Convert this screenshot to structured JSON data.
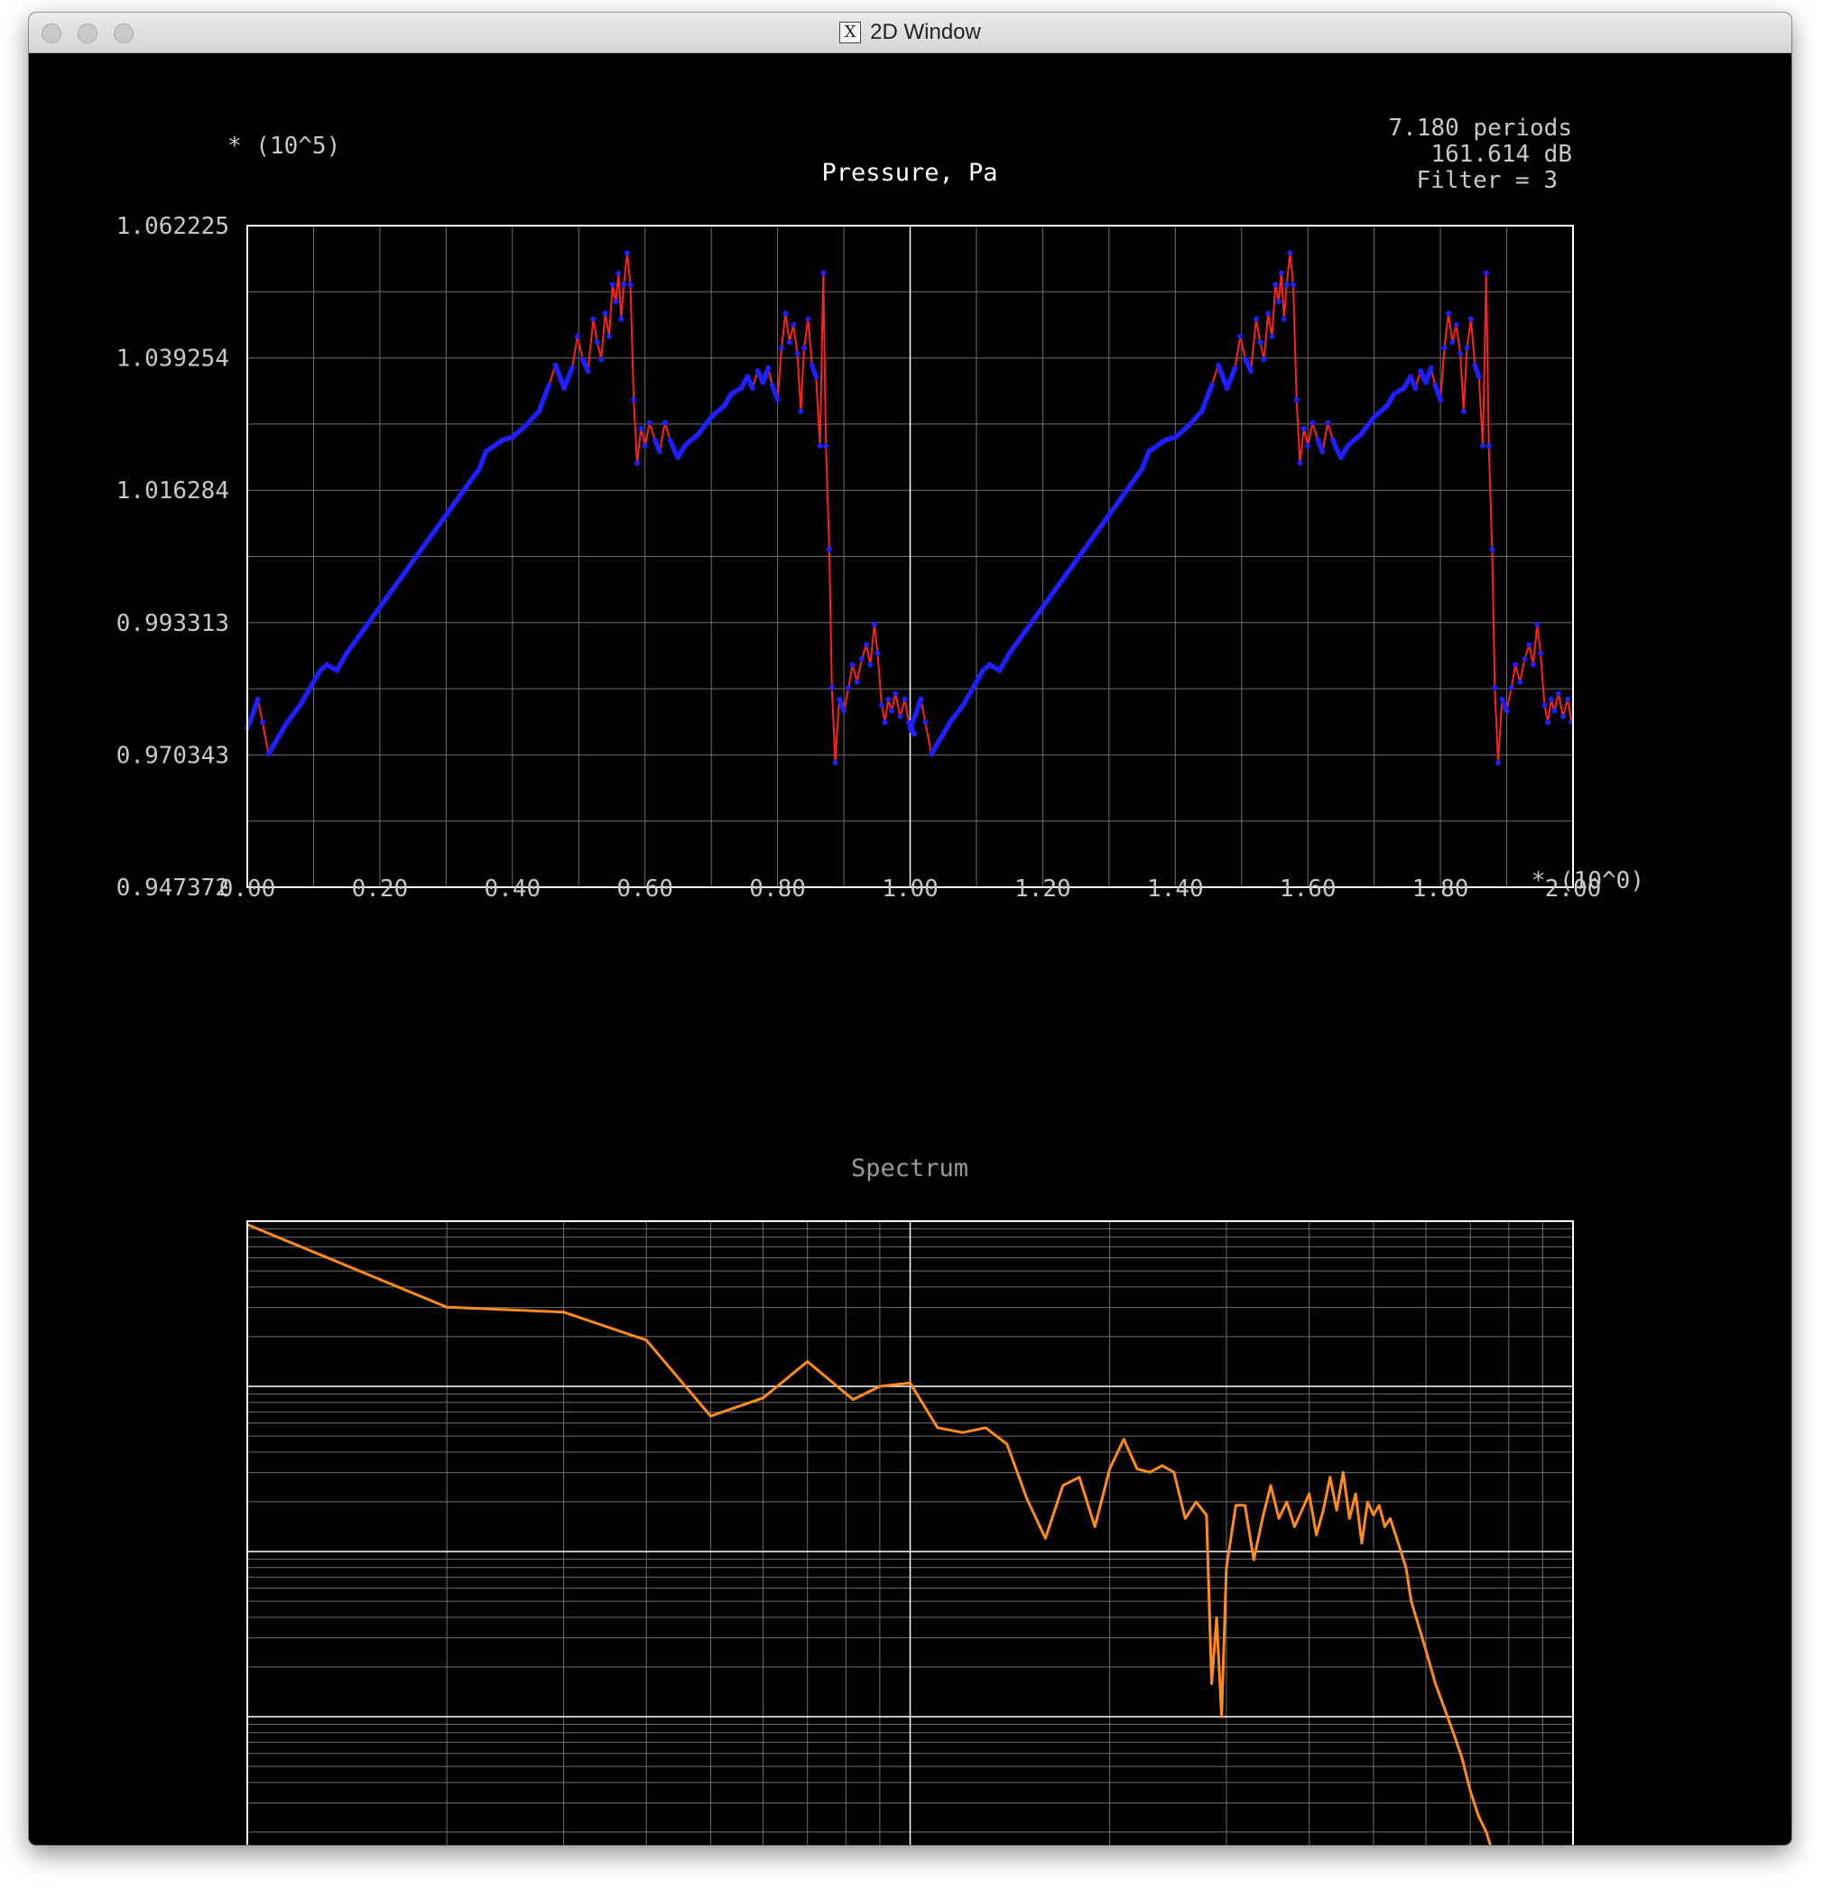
{
  "window": {
    "title": "2D Window",
    "icon": "x11-icon"
  },
  "pressure": {
    "title": "Pressure, Pa",
    "y_multiplier": "* (10^5)",
    "x_multiplier": "* (10^0)",
    "info": [
      "7.180 periods",
      "161.614 dB",
      "Filter = 3"
    ],
    "y_ticks": [
      "1.062225",
      "1.039254",
      "1.016284",
      "0.993313",
      "0.970343",
      "0.947372"
    ],
    "x_ticks": [
      "0.00",
      "0.20",
      "0.40",
      "0.60",
      "0.80",
      "1.00",
      "1.20",
      "1.40",
      "1.60",
      "1.80",
      "2.00"
    ]
  },
  "spectrum": {
    "title": "Spectrum"
  },
  "colors": {
    "points": "#1f1fff",
    "connector": "#ff2020",
    "spectrum_line": "#ff8c1a",
    "grid": "#6e6e6e",
    "frame": "#ffffff",
    "label": "#c8c8c8"
  },
  "chart_data": [
    {
      "type": "line",
      "title": "Pressure, Pa",
      "xlabel": "",
      "ylabel": "",
      "xlim": [
        0,
        2
      ],
      "ylim": [
        0.947372,
        1.062225
      ],
      "grid": true,
      "points": [
        [
          0.0,
          0.975
        ],
        [
          0.007,
          0.977
        ],
        [
          0.016,
          0.98
        ],
        [
          0.023,
          0.976
        ],
        [
          0.032,
          0.9705
        ],
        [
          0.045,
          0.973
        ],
        [
          0.06,
          0.976
        ],
        [
          0.08,
          0.979
        ],
        [
          0.1,
          0.983
        ],
        [
          0.11,
          0.985
        ],
        [
          0.12,
          0.986
        ],
        [
          0.135,
          0.985
        ],
        [
          0.15,
          0.988
        ],
        [
          0.2,
          0.996
        ],
        [
          0.25,
          1.004
        ],
        [
          0.3,
          1.012
        ],
        [
          0.35,
          1.02
        ],
        [
          0.36,
          1.023
        ],
        [
          0.385,
          1.025
        ],
        [
          0.4,
          1.0255
        ],
        [
          0.42,
          1.0275
        ],
        [
          0.44,
          1.03
        ],
        [
          0.455,
          1.0345
        ],
        [
          0.465,
          1.038
        ],
        [
          0.478,
          1.034
        ],
        [
          0.49,
          1.0375
        ],
        [
          0.498,
          1.043
        ],
        [
          0.506,
          1.039
        ],
        [
          0.514,
          1.037
        ],
        [
          0.522,
          1.046
        ],
        [
          0.528,
          1.042
        ],
        [
          0.534,
          1.039
        ],
        [
          0.54,
          1.047
        ],
        [
          0.546,
          1.043
        ],
        [
          0.551,
          1.052
        ],
        [
          0.556,
          1.049
        ],
        [
          0.56,
          1.054
        ],
        [
          0.564,
          1.046
        ],
        [
          0.568,
          1.052
        ],
        [
          0.573,
          1.0575
        ],
        [
          0.578,
          1.052
        ],
        [
          0.583,
          1.032
        ],
        [
          0.588,
          1.021
        ],
        [
          0.594,
          1.027
        ],
        [
          0.6,
          1.024
        ],
        [
          0.607,
          1.028
        ],
        [
          0.615,
          1.025
        ],
        [
          0.622,
          1.023
        ],
        [
          0.63,
          1.028
        ],
        [
          0.638,
          1.025
        ],
        [
          0.645,
          1.023
        ],
        [
          0.65,
          1.022
        ],
        [
          0.66,
          1.024
        ],
        [
          0.68,
          1.026
        ],
        [
          0.7,
          1.029
        ],
        [
          0.72,
          1.031
        ],
        [
          0.73,
          1.033
        ],
        [
          0.745,
          1.034
        ],
        [
          0.755,
          1.036
        ],
        [
          0.762,
          1.034
        ],
        [
          0.77,
          1.037
        ],
        [
          0.778,
          1.035
        ],
        [
          0.786,
          1.0375
        ],
        [
          0.792,
          1.0345
        ],
        [
          0.8,
          1.032
        ],
        [
          0.806,
          1.041
        ],
        [
          0.812,
          1.047
        ],
        [
          0.818,
          1.042
        ],
        [
          0.824,
          1.045
        ],
        [
          0.83,
          1.04
        ],
        [
          0.835,
          1.03
        ],
        [
          0.84,
          1.041
        ],
        [
          0.846,
          1.046
        ],
        [
          0.852,
          1.038
        ],
        [
          0.858,
          1.036
        ],
        [
          0.864,
          1.024
        ],
        [
          0.869,
          1.054
        ],
        [
          0.873,
          1.024
        ],
        [
          0.878,
          1.006
        ],
        [
          0.882,
          0.982
        ],
        [
          0.887,
          0.969
        ],
        [
          0.893,
          0.98
        ],
        [
          0.9,
          0.978
        ],
        [
          0.907,
          0.982
        ],
        [
          0.913,
          0.986
        ],
        [
          0.92,
          0.983
        ],
        [
          0.927,
          0.987
        ],
        [
          0.934,
          0.9895
        ],
        [
          0.94,
          0.986
        ],
        [
          0.946,
          0.993
        ],
        [
          0.951,
          0.988
        ],
        [
          0.957,
          0.979
        ],
        [
          0.962,
          0.976
        ],
        [
          0.967,
          0.98
        ],
        [
          0.972,
          0.978
        ],
        [
          0.978,
          0.981
        ],
        [
          0.985,
          0.977
        ],
        [
          0.992,
          0.98
        ],
        [
          0.998,
          0.976
        ],
        [
          1.006,
          0.974
        ]
      ]
    },
    {
      "type": "line",
      "title": "Spectrum",
      "xlabel": "",
      "ylabel": "",
      "xscale": "log",
      "yscale": "log",
      "xlim": [
        1,
        100
      ],
      "grid": true,
      "decade_lines": 4,
      "x_decade": [
        0,
        2
      ],
      "y_decade": [
        -4,
        0
      ],
      "points": [
        [
          1.0,
          -0.02
        ],
        [
          2.0,
          -0.52
        ],
        [
          3.0,
          -0.55
        ],
        [
          4.0,
          -0.72
        ],
        [
          5.0,
          -1.18
        ],
        [
          6.0,
          -1.07
        ],
        [
          7.0,
          -0.85
        ],
        [
          8.2,
          -1.08
        ],
        [
          9.0,
          -1.0
        ],
        [
          10.0,
          -0.98
        ],
        [
          11.0,
          -1.25
        ],
        [
          12.0,
          -1.28
        ],
        [
          13.0,
          -1.25
        ],
        [
          14.0,
          -1.35
        ],
        [
          15.0,
          -1.68
        ],
        [
          16.0,
          -1.92
        ],
        [
          17.0,
          -1.6
        ],
        [
          18.0,
          -1.55
        ],
        [
          19.0,
          -1.85
        ],
        [
          20.0,
          -1.5
        ],
        [
          21.0,
          -1.32
        ],
        [
          22.0,
          -1.5
        ],
        [
          23.0,
          -1.52
        ],
        [
          24.0,
          -1.48
        ],
        [
          25.0,
          -1.52
        ],
        [
          26.0,
          -1.8
        ],
        [
          27.0,
          -1.7
        ],
        [
          28.0,
          -1.78
        ],
        [
          28.5,
          -2.8
        ],
        [
          29.0,
          -2.4
        ],
        [
          29.5,
          -3.0
        ],
        [
          30.0,
          -2.1
        ],
        [
          31.0,
          -1.72
        ],
        [
          32.0,
          -1.72
        ],
        [
          33.0,
          -2.05
        ],
        [
          34.0,
          -1.8
        ],
        [
          35.0,
          -1.6
        ],
        [
          36.0,
          -1.8
        ],
        [
          37.0,
          -1.7
        ],
        [
          38.0,
          -1.85
        ],
        [
          39.0,
          -1.75
        ],
        [
          40.0,
          -1.65
        ],
        [
          41.0,
          -1.9
        ],
        [
          42.0,
          -1.75
        ],
        [
          43.0,
          -1.55
        ],
        [
          44.0,
          -1.75
        ],
        [
          45.0,
          -1.52
        ],
        [
          46.0,
          -1.8
        ],
        [
          47.0,
          -1.65
        ],
        [
          48.0,
          -1.95
        ],
        [
          49.0,
          -1.7
        ],
        [
          50.0,
          -1.78
        ],
        [
          51.0,
          -1.72
        ],
        [
          52.0,
          -1.85
        ],
        [
          53.0,
          -1.8
        ],
        [
          54.0,
          -1.9
        ],
        [
          55.0,
          -2.0
        ],
        [
          56.0,
          -2.1
        ],
        [
          57.0,
          -2.3
        ],
        [
          58.0,
          -2.4
        ],
        [
          59.0,
          -2.5
        ],
        [
          60.0,
          -2.6
        ],
        [
          62.0,
          -2.8
        ],
        [
          64.0,
          -2.95
        ],
        [
          66.0,
          -3.1
        ],
        [
          68.0,
          -3.25
        ],
        [
          70.0,
          -3.45
        ],
        [
          72.0,
          -3.6
        ],
        [
          74.0,
          -3.7
        ],
        [
          76.0,
          -3.85
        ],
        [
          78.0,
          -3.95
        ],
        [
          79.5,
          -3.99
        ]
      ]
    }
  ]
}
